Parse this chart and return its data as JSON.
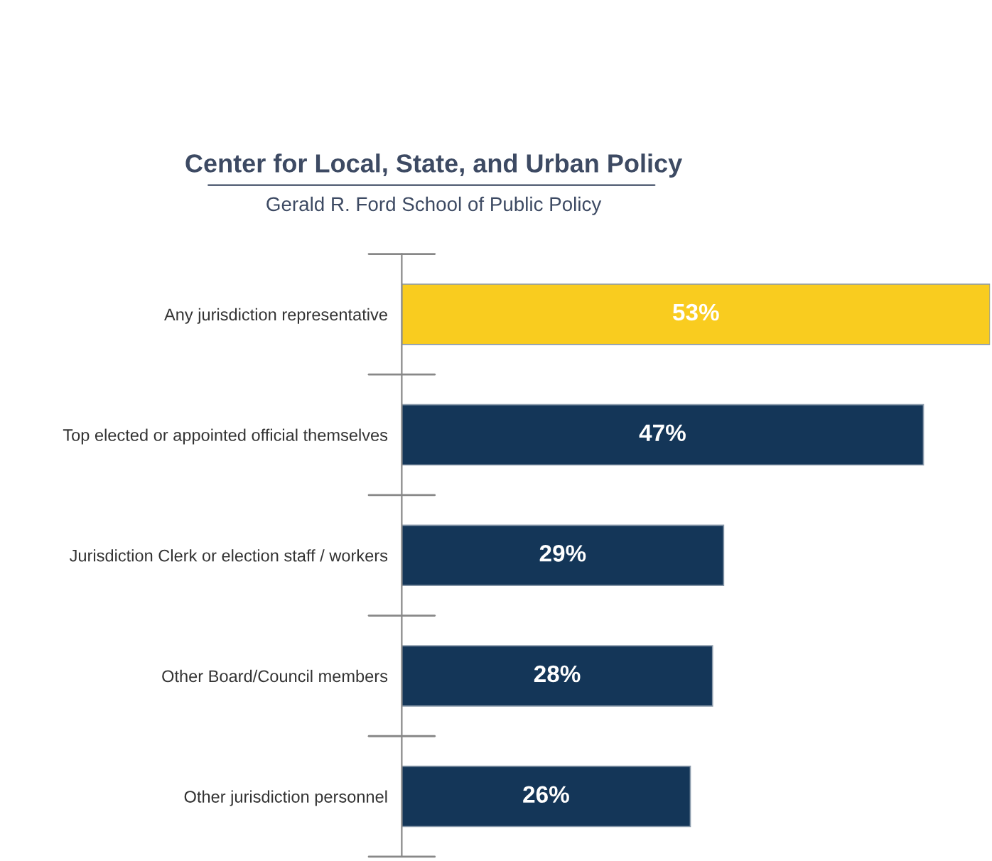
{
  "chart_data": {
    "type": "bar",
    "orientation": "horizontal",
    "title": "Center for Local, State, and Urban Policy",
    "subtitle": "Gerald R. Ford School of Public Policy",
    "categories": [
      "Any jurisdiction representative",
      "Top elected or appointed official themselves",
      "Jurisdiction Clerk or election staff / workers",
      "Other Board/Council members",
      "Other jurisdiction personnel"
    ],
    "values": [
      53,
      47,
      29,
      28,
      26
    ],
    "colors": [
      "#f9cc1f",
      "#143658",
      "#143658",
      "#143658",
      "#143658"
    ],
    "value_labels": [
      "53%",
      "47%",
      "29%",
      "28%",
      "26%"
    ],
    "xlim": [
      0,
      53
    ],
    "tick_labels": "y",
    "grid": false,
    "legend": false
  }
}
